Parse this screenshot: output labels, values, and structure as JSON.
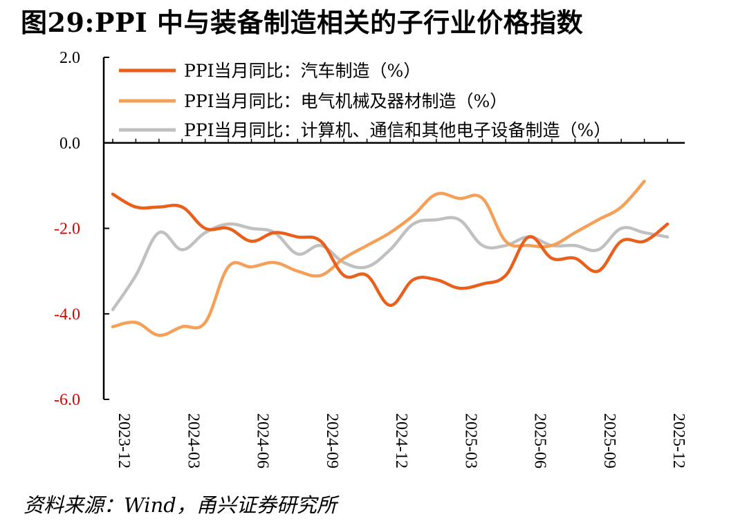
{
  "page": {
    "title": "图29:PPI 中与装备制造相关的子行业价格指数",
    "source": "资料来源：Wind，甬兴证券研究所"
  },
  "chart_data": {
    "type": "line",
    "title": "图29:PPI 中与装备制造相关的子行业价格指数",
    "xlabel": "",
    "ylabel": "",
    "ylim": [
      -6.0,
      2.0
    ],
    "yticks": [
      2.0,
      0.0,
      -2.0,
      -4.0,
      -6.0
    ],
    "ytick_labels": [
      "2.0",
      "0.0",
      "-2.0",
      "-4.0",
      "-6.0"
    ],
    "negative_tick_color": "#e00000",
    "x": [
      "2023-12",
      "2024-01",
      "2024-02",
      "2024-03",
      "2024-04",
      "2024-05",
      "2024-06",
      "2024-07",
      "2024-08",
      "2024-09",
      "2024-10",
      "2024-11",
      "2024-12",
      "2025-01",
      "2025-02",
      "2025-03",
      "2025-04",
      "2025-05",
      "2025-06",
      "2025-07",
      "2025-08",
      "2025-09",
      "2025-10",
      "2025-11",
      "2025-12"
    ],
    "xtick_labels": [
      "2023-12",
      "2024-03",
      "2024-06",
      "2024-09",
      "2024-12",
      "2025-03",
      "2025-06",
      "2025-09",
      "2025-12"
    ],
    "legend_position": "top",
    "series": [
      {
        "name": "PPI当月同比：汽车制造（%）",
        "color": "#e8601c",
        "values": [
          -1.2,
          -1.5,
          -1.5,
          -1.5,
          -2.0,
          -2.0,
          -2.3,
          -2.1,
          -2.2,
          -2.3,
          -3.1,
          -3.1,
          -3.8,
          -3.2,
          -3.2,
          -3.4,
          -3.3,
          -3.1,
          -2.2,
          -2.7,
          -2.7,
          -3.0,
          -2.3,
          -2.3,
          -1.9
        ]
      },
      {
        "name": "PPI当月同比：电气机械及器材制造（%）",
        "color": "#f4a058",
        "values": [
          -4.3,
          -4.2,
          -4.5,
          -4.3,
          -4.2,
          -2.9,
          -2.9,
          -2.8,
          -3.0,
          -3.1,
          -2.7,
          -2.4,
          -2.1,
          -1.7,
          -1.2,
          -1.3,
          -1.3,
          -2.3,
          -2.4,
          -2.4,
          -2.1,
          -1.8,
          -1.5,
          -0.9,
          null
        ]
      },
      {
        "name": "PPI当月同比：计算机、通信和其他电子设备制造（%）",
        "color": "#c0c0c0",
        "values": [
          -3.9,
          -3.1,
          -2.1,
          -2.5,
          -2.1,
          -1.9,
          -2.0,
          -2.1,
          -2.6,
          -2.4,
          -2.8,
          -2.9,
          -2.5,
          -1.9,
          -1.8,
          -1.8,
          -2.4,
          -2.4,
          -2.2,
          -2.4,
          -2.4,
          -2.5,
          -2.0,
          -2.1,
          -2.2
        ]
      }
    ]
  }
}
